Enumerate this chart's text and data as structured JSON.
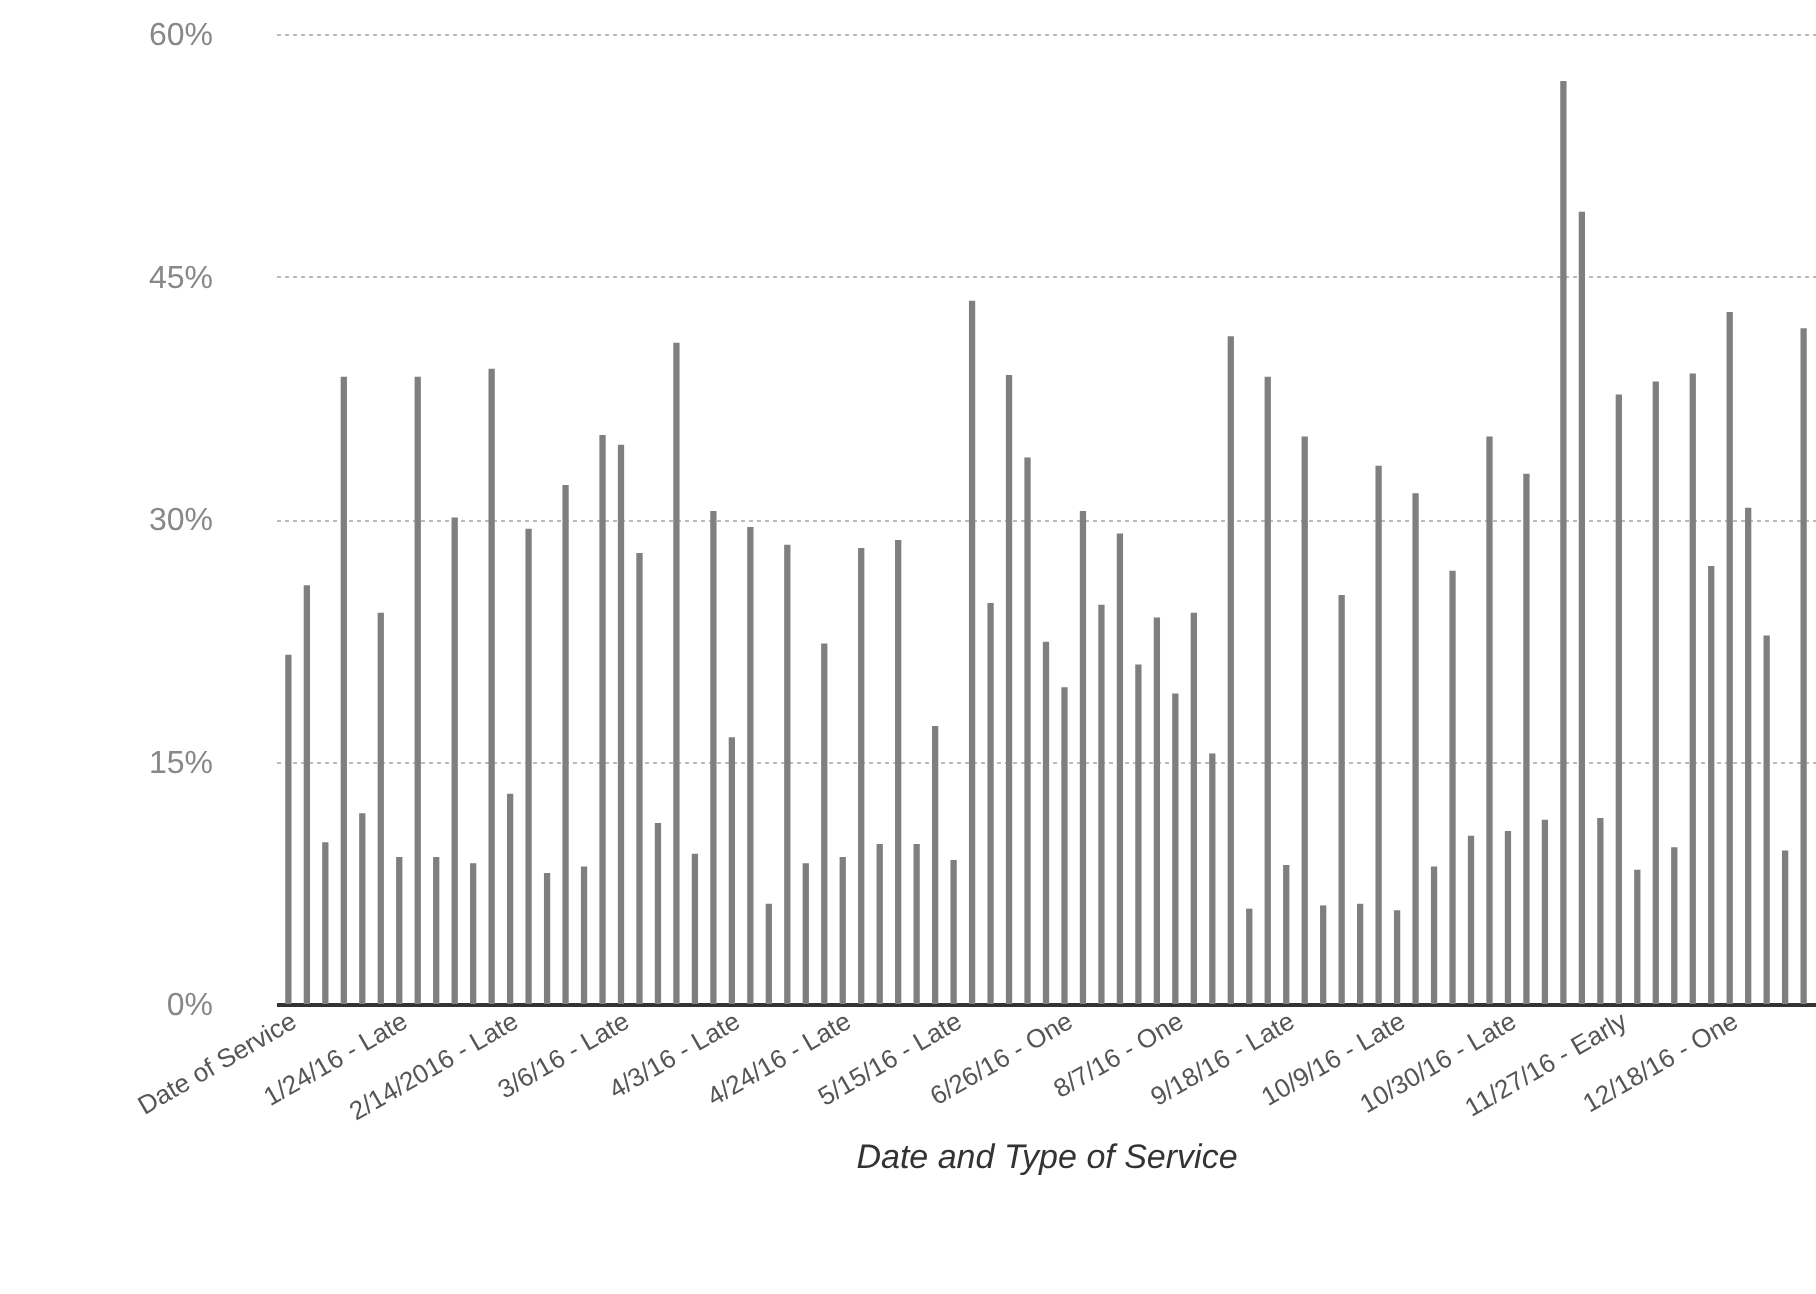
{
  "chart_data": {
    "type": "bar",
    "xlabel": "Date and Type of Service",
    "categories": [
      "Date of Service",
      null,
      null,
      null,
      null,
      null,
      "1/24/16 - Late",
      null,
      null,
      null,
      null,
      null,
      "2/14/2016 - Late",
      null,
      null,
      null,
      null,
      null,
      "3/6/16 - Late",
      null,
      null,
      null,
      null,
      null,
      "4/3/16 - Late",
      null,
      null,
      null,
      null,
      null,
      "4/24/16 - Late",
      null,
      null,
      null,
      null,
      null,
      "5/15/16 - Late",
      null,
      null,
      null,
      null,
      null,
      "6/26/16 - One",
      null,
      null,
      null,
      null,
      null,
      "8/7/16 - One",
      null,
      null,
      null,
      null,
      null,
      "9/18/16 - Late",
      null,
      null,
      null,
      null,
      null,
      "10/9/16 - Late",
      null,
      null,
      null,
      null,
      null,
      "10/30/16 - Late",
      null,
      null,
      null,
      null,
      null,
      "11/27/16 - Early",
      null,
      null,
      null,
      null,
      null,
      "12/18/16 - One",
      null,
      null,
      null,
      null
    ],
    "values": [
      21.6,
      25.9,
      10.0,
      38.8,
      11.8,
      24.2,
      9.1,
      38.8,
      9.1,
      30.1,
      8.7,
      39.3,
      13.0,
      29.4,
      8.1,
      32.1,
      8.5,
      35.2,
      34.6,
      27.9,
      11.2,
      40.9,
      9.3,
      30.5,
      16.5,
      29.5,
      6.2,
      28.4,
      8.7,
      22.3,
      9.1,
      28.2,
      9.9,
      28.7,
      9.9,
      17.2,
      8.9,
      43.5,
      24.8,
      38.9,
      33.8,
      22.4,
      19.6,
      30.5,
      24.7,
      29.1,
      21.0,
      23.9,
      19.2,
      24.2,
      15.5,
      41.3,
      5.9,
      38.8,
      8.6,
      35.1,
      6.1,
      25.3,
      6.2,
      33.3,
      5.8,
      31.6,
      8.5,
      26.8,
      10.4,
      35.1,
      10.7,
      32.8,
      11.4,
      57.1,
      49.0,
      11.5,
      37.7,
      8.3,
      38.5,
      9.7,
      39.0,
      27.1,
      42.8,
      30.7,
      22.8,
      9.5,
      41.8
    ],
    "color": "#7f7f7f",
    "ylim": [
      0,
      60
    ],
    "yticks": [
      {
        "value": 0,
        "label": "0%"
      },
      {
        "value": 15,
        "label": "15%"
      },
      {
        "value": 30,
        "label": "30%"
      },
      {
        "value": 45,
        "label": "45%"
      },
      {
        "value": 60,
        "label": "60%"
      }
    ],
    "grid": "y"
  }
}
